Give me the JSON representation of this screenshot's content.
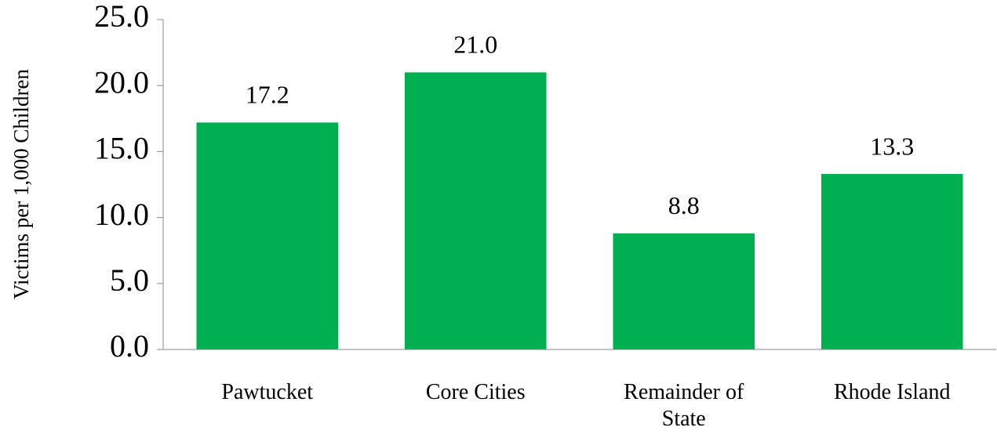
{
  "chart_data": {
    "type": "bar",
    "y_label": "Victims per 1,000 Children",
    "categories": [
      "Pawtucket",
      "Core Cities",
      "Remainder of State",
      "Rhode Island"
    ],
    "values": [
      17.2,
      21.0,
      8.8,
      13.3
    ],
    "value_labels": [
      "17.2",
      "21.0",
      "8.8",
      "13.3"
    ],
    "color": "#00b050",
    "ylim": [
      0,
      25
    ],
    "yticks": [
      {
        "value": 0,
        "label": "0.0"
      },
      {
        "value": 5,
        "label": "5.0"
      },
      {
        "value": 10,
        "label": "10.0"
      },
      {
        "value": 15,
        "label": "15.0"
      },
      {
        "value": 20,
        "label": "20.0"
      },
      {
        "value": 25,
        "label": "25.0"
      }
    ],
    "grid": false
  }
}
